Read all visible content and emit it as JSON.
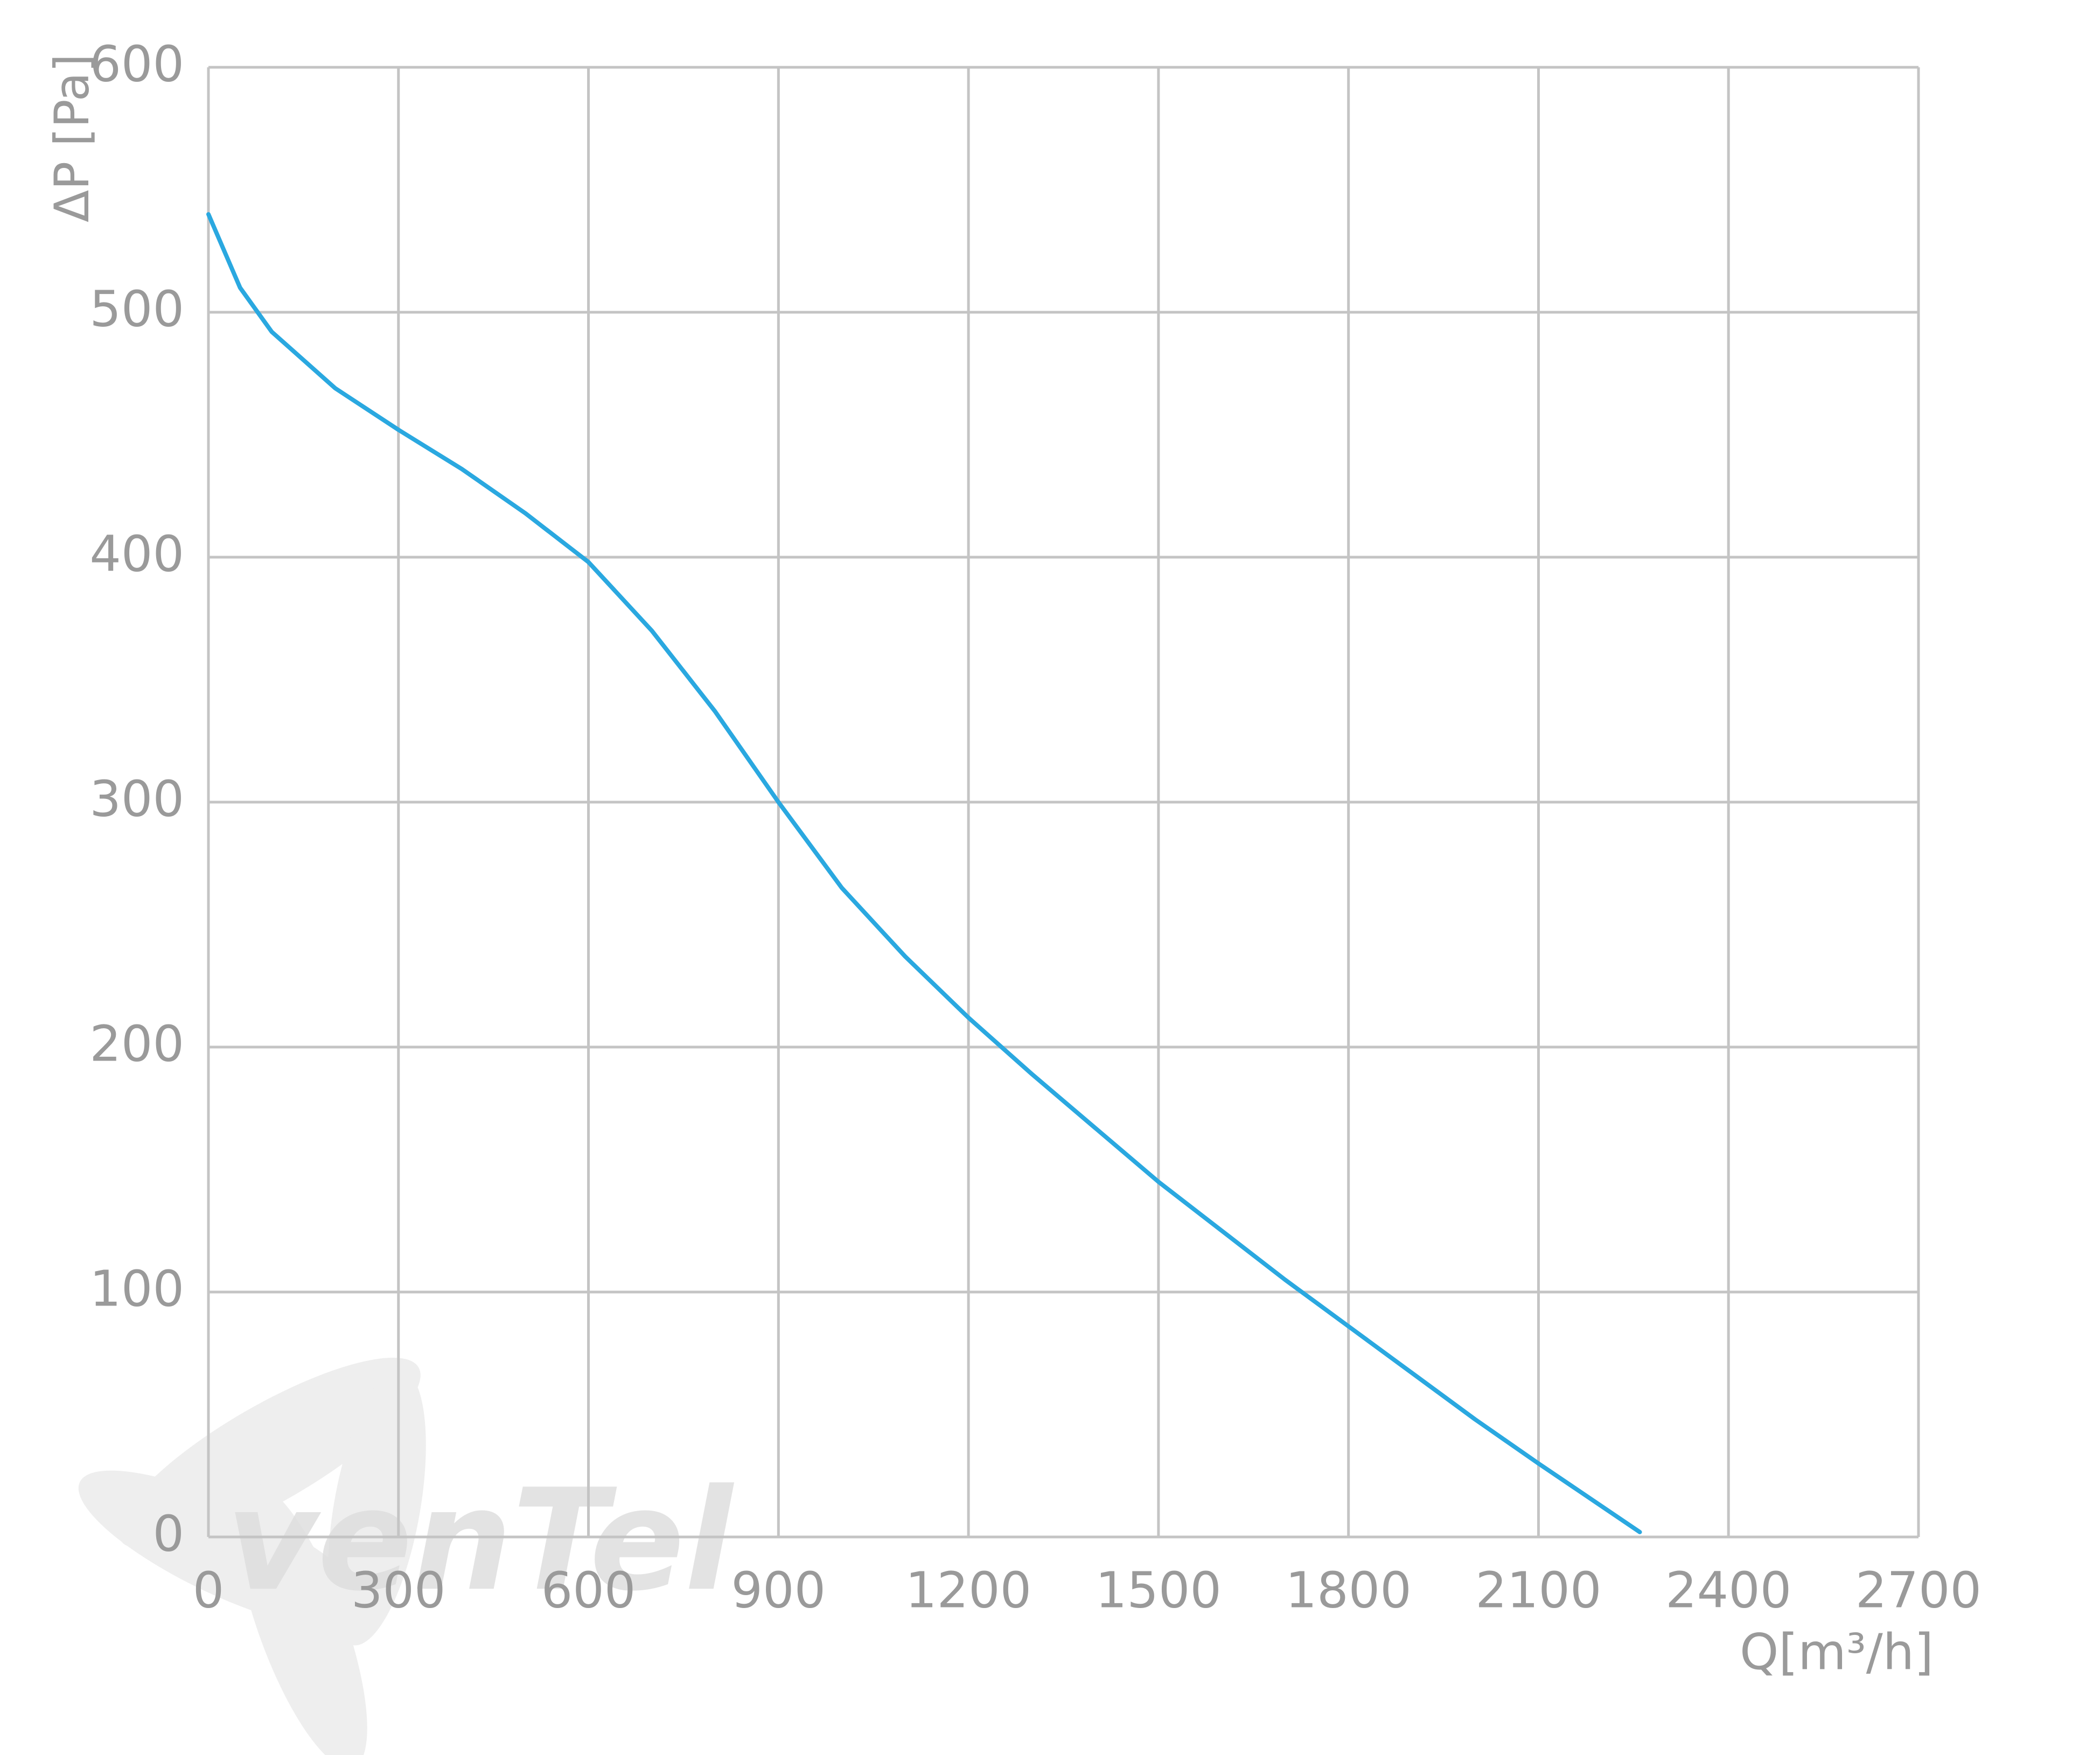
{
  "chart_data": {
    "type": "line",
    "x_label": "Q[m³/h]",
    "y_label": "ΔP [Pa]",
    "watermark": "venTel",
    "xlim": [
      0,
      2700
    ],
    "xticks": [
      0,
      300,
      600,
      900,
      1200,
      1500,
      1800,
      2100,
      2400,
      2700
    ],
    "ylim": [
      0,
      600
    ],
    "yticks": [
      0,
      100,
      200,
      300,
      400,
      500,
      600
    ],
    "grid": true,
    "series": [
      {
        "name": "ΔP",
        "color": "#2aa8e0",
        "x": [
          0,
          50,
          100,
          200,
          300,
          400,
          500,
          600,
          700,
          800,
          900,
          1000,
          1100,
          1200,
          1300,
          1400,
          1500,
          1600,
          1700,
          1800,
          1900,
          2000,
          2100,
          2260
        ],
        "values": [
          540,
          510,
          492,
          469,
          452,
          436,
          418,
          398,
          370,
          337,
          300,
          265,
          237,
          212,
          189,
          167,
          145,
          125,
          105,
          86,
          67,
          48,
          30,
          2
        ]
      }
    ]
  }
}
